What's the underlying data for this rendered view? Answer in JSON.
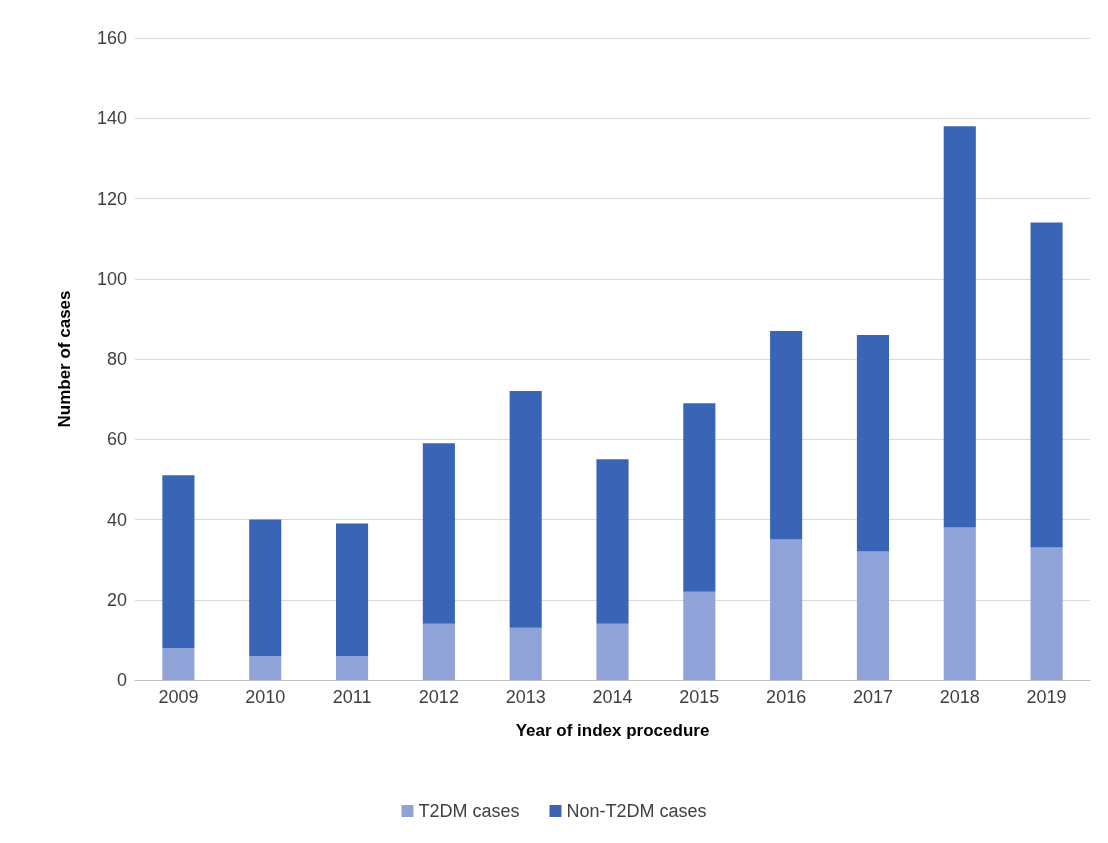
{
  "chart_data": {
    "type": "bar",
    "stacked": true,
    "xlabel": "Year of index procedure",
    "ylabel": "Number of cases",
    "categories": [
      "2009",
      "2010",
      "2011",
      "2012",
      "2013",
      "2014",
      "2015",
      "2016",
      "2017",
      "2018",
      "2019"
    ],
    "series": [
      {
        "name": "T2DM cases",
        "color": "#8fa3d8",
        "values": [
          8,
          6,
          6,
          14,
          13,
          14,
          22,
          35,
          32,
          38,
          33
        ]
      },
      {
        "name": "Non-T2DM cases",
        "color": "#3a64b5",
        "values": [
          43,
          34,
          33,
          45,
          59,
          41,
          47,
          52,
          54,
          100,
          81
        ]
      }
    ],
    "ylim": [
      0,
      160
    ],
    "yticks": [
      0,
      20,
      40,
      60,
      80,
      100,
      120,
      140,
      160
    ],
    "grid": "y",
    "legend": "bottom"
  }
}
